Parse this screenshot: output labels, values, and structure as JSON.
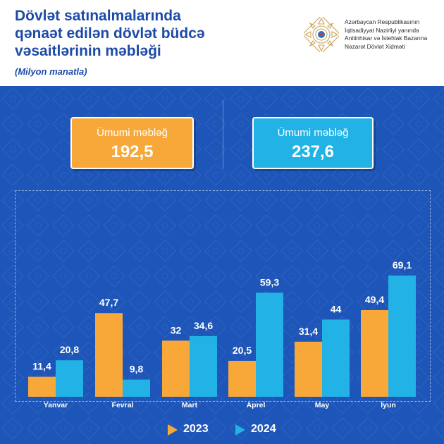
{
  "header": {
    "title_lines": [
      "Dövlət satınalmalarında",
      "qənaət edilən dövlət büdcə",
      "vəsaitlərinin məbləği"
    ],
    "subtitle": "(Milyon manatla)",
    "org_lines": [
      "Azərbaycan Respublikasının",
      "İqtisadiyyat Nazirliyi yanında",
      "Antiinhisar və İstehlak Bazarına",
      "Nəzarət Dövlət Xidməti"
    ],
    "logo_icon": "state-emblem-logo"
  },
  "totals": [
    {
      "label": "Ümumi məbləğ",
      "value": "192,5",
      "color": "#f7a838"
    },
    {
      "label": "Ümumi məbləğ",
      "value": "237,6",
      "color": "#22b2e6"
    }
  ],
  "legend": [
    "2023",
    "2024"
  ],
  "colors": {
    "background": "#1d55b8",
    "series_2023": "#f7a838",
    "series_2024": "#22b2e6",
    "title": "#1c4aa8"
  },
  "chart_data": {
    "type": "bar",
    "title": "Dövlət satınalmalarında qənaət edilən dövlət büdcə vəsaitlərinin məbləği",
    "ylabel": "",
    "xlabel": "",
    "categories": [
      "Yanvar",
      "Fevral",
      "Mart",
      "Aprel",
      "May",
      "İyun"
    ],
    "series": [
      {
        "name": "2023",
        "values": [
          11.4,
          47.7,
          32,
          20.5,
          31.4,
          49.4
        ],
        "labels": [
          "11,4",
          "47,7",
          "32",
          "20,5",
          "31,4",
          "49,4"
        ]
      },
      {
        "name": "2024",
        "values": [
          20.8,
          9.8,
          34.6,
          59.3,
          44,
          69.1
        ],
        "labels": [
          "20,8",
          "9,8",
          "34,6",
          "59,3",
          "44",
          "69,1"
        ]
      }
    ],
    "ylim": [
      0,
      75
    ],
    "grid": false,
    "legend_position": "bottom"
  }
}
